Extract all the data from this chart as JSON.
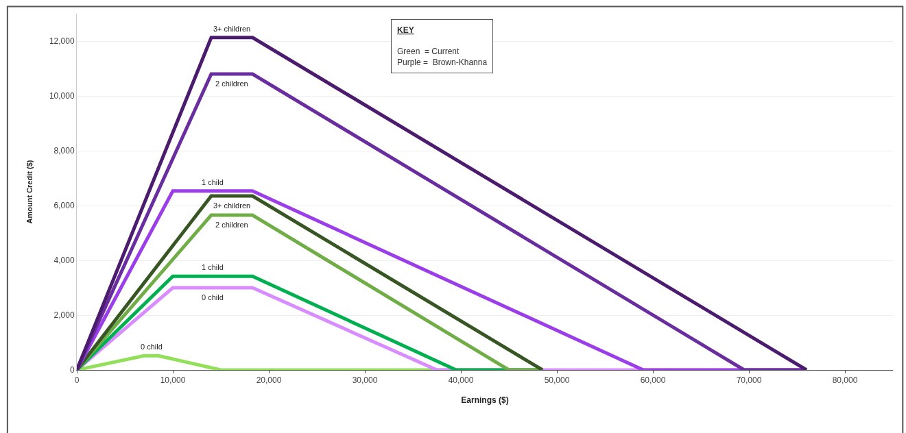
{
  "chart_data": {
    "type": "line",
    "xlabel": "Earnings ($)",
    "ylabel": "Amount Credit ($)",
    "xlim": [
      0,
      85000
    ],
    "ylim": [
      0,
      13000
    ],
    "xticks": [
      0,
      {
        "value": 10000,
        "label": "10,000"
      },
      {
        "value": 20000,
        "label": "20,000"
      },
      {
        "value": 30000,
        "label": "30,000"
      },
      {
        "value": 40000,
        "label": "40,000"
      },
      {
        "value": 50000,
        "label": "50,000"
      },
      {
        "value": 60000,
        "label": "60,000"
      },
      {
        "value": 70000,
        "label": "70,000"
      },
      {
        "value": 80000,
        "label": "80,000"
      }
    ],
    "yticks": [
      0,
      {
        "value": 2000,
        "label": "2,000"
      },
      {
        "value": 4000,
        "label": "4,000"
      },
      {
        "value": 6000,
        "label": "6,000"
      },
      {
        "value": 8000,
        "label": "8,000"
      },
      {
        "value": 10000,
        "label": "10,000"
      },
      {
        "value": 12000,
        "label": "12,000"
      }
    ],
    "grid": "y",
    "legend": false,
    "marker": "none",
    "line_style": "solid",
    "series": [
      {
        "name": "0 child",
        "color": "#92e05a",
        "x": [
          0,
          7000,
          8500,
          15000,
          48500
        ],
        "values": [
          0,
          520,
          520,
          0,
          0
        ]
      },
      {
        "name": "0 child",
        "color": "#d98cff",
        "x": [
          0,
          10000,
          18300,
          37500,
          76000
        ],
        "values": [
          0,
          3000,
          3000,
          0,
          0
        ]
      },
      {
        "name": "1 child",
        "color": "#00b050",
        "x": [
          0,
          10000,
          18300,
          39500,
          48500
        ],
        "values": [
          0,
          3420,
          3420,
          0,
          0
        ]
      },
      {
        "name": "2 children",
        "color": "#70ad47",
        "x": [
          0,
          14000,
          18300,
          45000,
          48500
        ],
        "values": [
          0,
          5650,
          5650,
          0,
          0
        ]
      },
      {
        "name": "3+ children",
        "color": "#375623",
        "x": [
          0,
          14000,
          18300,
          48500
        ],
        "values": [
          0,
          6350,
          6350,
          0
        ]
      },
      {
        "name": "1 child",
        "color": "#9b3de8",
        "x": [
          0,
          10000,
          18300,
          59000,
          76000
        ],
        "values": [
          0,
          6530,
          6530,
          0,
          0
        ]
      },
      {
        "name": "2 children",
        "color": "#6a2da0",
        "x": [
          0,
          14000,
          18300,
          69500,
          76000
        ],
        "values": [
          0,
          10800,
          10800,
          0,
          0
        ]
      },
      {
        "name": "3+ children",
        "color": "#4b1c6e",
        "x": [
          0,
          14000,
          18300,
          76000
        ],
        "values": [
          0,
          12130,
          12130,
          0
        ]
      }
    ],
    "annotations": [
      "KEY",
      "Green  = Current",
      "Purple =  Brown-Khanna"
    ]
  }
}
